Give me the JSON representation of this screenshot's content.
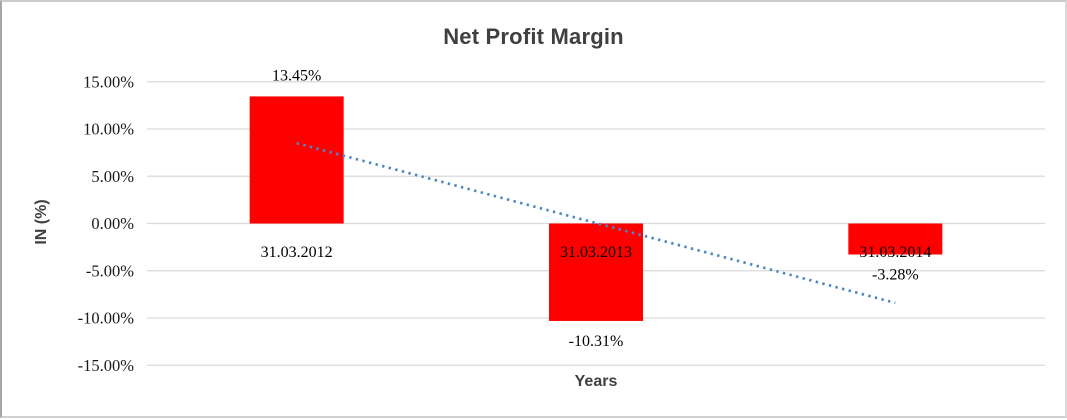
{
  "chart_data": {
    "type": "bar",
    "title": "Net Profit Margin",
    "xlabel": "Years",
    "ylabel": "IN (%)",
    "categories": [
      "31.03.2012",
      "31.03.2013",
      "31.03.2014"
    ],
    "series": [
      {
        "name": "Net Profit Margin",
        "values": [
          13.45,
          -10.31,
          -3.28
        ]
      }
    ],
    "data_labels": [
      "13.45%",
      "-10.31%",
      "-3.28%"
    ],
    "ytick_values": [
      15,
      10,
      5,
      0,
      -5,
      -10,
      -15
    ],
    "ytick_labels": [
      "15.00%",
      "10.00%",
      "5.00%",
      "0.00%",
      "-5.00%",
      "-10.00%",
      "-15.00%"
    ],
    "ylim": [
      -15,
      15
    ],
    "grid": true,
    "legend": "none",
    "colors": {
      "bar": "#ff0000",
      "trendline": "#4e87c5",
      "gridline": "#d9d9d9",
      "title_text": "#404040",
      "label_text": "#1a1a1a"
    },
    "trendline": {
      "type": "linear",
      "style": "dotted",
      "start_value": 8.5,
      "end_value": -8.4
    }
  }
}
